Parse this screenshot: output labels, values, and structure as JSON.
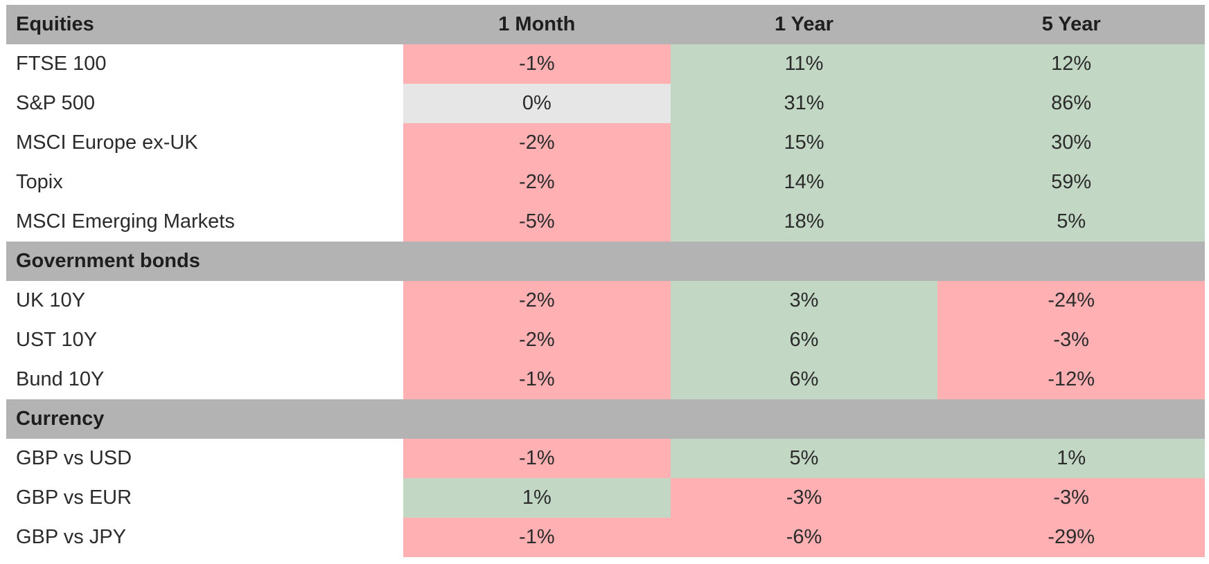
{
  "chart_data": {
    "type": "table",
    "columns": [
      "1 Month",
      "1 Year",
      "5 Year"
    ],
    "colors": {
      "negative": "#ffb0b3",
      "positive": "#c2d8c4",
      "neutral": "#e6e6e6",
      "section_header": "#b3b3b3"
    },
    "sections": [
      {
        "name": "Equities",
        "rows": [
          {
            "label": "FTSE 100",
            "values": [
              "-1%",
              "11%",
              "12%"
            ]
          },
          {
            "label": "S&P 500",
            "values": [
              "0%",
              "31%",
              "86%"
            ]
          },
          {
            "label": "MSCI Europe ex-UK",
            "values": [
              "-2%",
              "15%",
              "30%"
            ]
          },
          {
            "label": "Topix",
            "values": [
              "-2%",
              "14%",
              "59%"
            ]
          },
          {
            "label": "MSCI Emerging Markets",
            "values": [
              "-5%",
              "18%",
              "5%"
            ]
          }
        ]
      },
      {
        "name": "Government bonds",
        "rows": [
          {
            "label": "UK 10Y",
            "values": [
              "-2%",
              "3%",
              "-24%"
            ]
          },
          {
            "label": "UST 10Y",
            "values": [
              "-2%",
              "6%",
              "-3%"
            ]
          },
          {
            "label": "Bund 10Y",
            "values": [
              "-1%",
              "6%",
              "-12%"
            ]
          }
        ]
      },
      {
        "name": "Currency",
        "rows": [
          {
            "label": "GBP vs USD",
            "values": [
              "-1%",
              "5%",
              "1%"
            ]
          },
          {
            "label": "GBP vs EUR",
            "values": [
              "1%",
              "-3%",
              "-3%"
            ]
          },
          {
            "label": "GBP vs JPY",
            "values": [
              "-1%",
              "-6%",
              "-29%"
            ]
          }
        ]
      }
    ]
  }
}
